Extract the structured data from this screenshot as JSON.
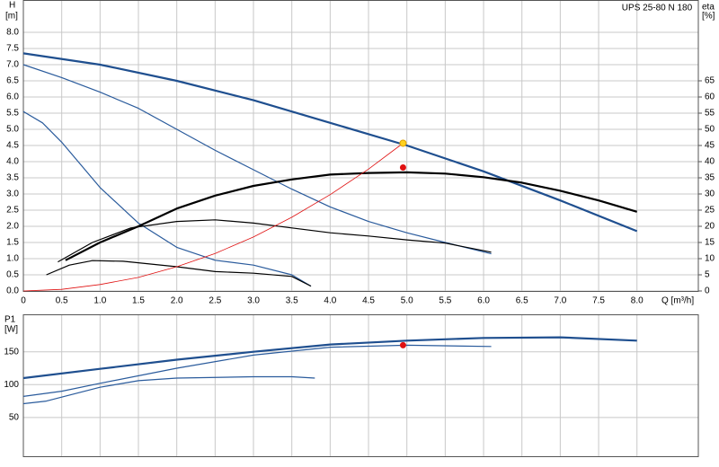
{
  "chart_data": [
    {
      "type": "line",
      "ylabel": "H",
      "yunit": "[m]",
      "y2label": "eta",
      "y2unit": "[%]",
      "xlabel": "Q [m³/h]",
      "legend_label": "UPS 25-80 N 180",
      "xlim": [
        0,
        8.8
      ],
      "ylim": [
        0,
        9
      ],
      "y2lim": [
        0,
        90
      ],
      "grid": true,
      "show_xtick_labels": true,
      "xticks": [
        0,
        0.5,
        {
          "value": 1,
          "label": "1.0"
        },
        1.5,
        {
          "value": 2,
          "label": "2.0"
        },
        2.5,
        {
          "value": 3,
          "label": "3.0"
        },
        3.5,
        {
          "value": 4,
          "label": "4.0"
        },
        4.5,
        {
          "value": 5,
          "label": "5.0"
        },
        5.5,
        {
          "value": 6,
          "label": "6.0"
        },
        6.5,
        {
          "value": 7,
          "label": "7.0"
        },
        7.5,
        {
          "value": 8,
          "label": "8.0"
        }
      ],
      "yticks": [
        {
          "value": 0,
          "label": "0.0"
        },
        0.5,
        {
          "value": 1,
          "label": "1.0"
        },
        1.5,
        {
          "value": 2,
          "label": "2.0"
        },
        2.5,
        {
          "value": 3,
          "label": "3.0"
        },
        3.5,
        {
          "value": 4,
          "label": "4.0"
        },
        4.5,
        {
          "value": 5,
          "label": "5.0"
        },
        5.5,
        {
          "value": 6,
          "label": "6.0"
        },
        6.5,
        {
          "value": 7,
          "label": "7.0"
        },
        7.5,
        {
          "value": 8,
          "label": "8.0"
        }
      ],
      "y2ticks": [
        0,
        5,
        10,
        15,
        20,
        25,
        30,
        35,
        40,
        45,
        50,
        55,
        60,
        65
      ],
      "series": [
        {
          "color": "#1f4f8f",
          "width": 2.2,
          "x": [
            0,
            1,
            2,
            3,
            4,
            5,
            6,
            7,
            8
          ],
          "values": [
            7.35,
            7.0,
            6.5,
            5.9,
            5.2,
            4.5,
            3.7,
            2.8,
            1.85
          ]
        },
        {
          "color": "#2a5b9c",
          "width": 1.2,
          "x": [
            0,
            0.5,
            1,
            1.5,
            2,
            2.5,
            3,
            3.5,
            4,
            4.5,
            5,
            5.5,
            6.1
          ],
          "values": [
            7.0,
            6.6,
            6.15,
            5.65,
            5.0,
            4.35,
            3.75,
            3.15,
            2.6,
            2.15,
            1.8,
            1.5,
            1.15
          ]
        },
        {
          "color": "#2a5b9c",
          "width": 1.2,
          "x": [
            0,
            0.25,
            0.5,
            1,
            1.5,
            2,
            2.5,
            3,
            3.5,
            3.75
          ],
          "values": [
            5.55,
            5.2,
            4.6,
            3.2,
            2.1,
            1.35,
            0.95,
            0.8,
            0.5,
            0.15
          ]
        },
        {
          "axis": "y2",
          "color": "#000000",
          "width": 2.2,
          "x": [
            0.55,
            1,
            1.5,
            2,
            2.5,
            3,
            3.5,
            4,
            4.5,
            5,
            5.5,
            6,
            6.5,
            7,
            7.5,
            8
          ],
          "values": [
            9.5,
            15,
            20,
            25.5,
            29.5,
            32.5,
            34.5,
            36,
            36.5,
            36.7,
            36.3,
            35.2,
            33.5,
            31,
            28,
            24.5
          ]
        },
        {
          "axis": "y2",
          "color": "#000000",
          "width": 1.2,
          "x": [
            0.45,
            0.9,
            1.4,
            2,
            2.5,
            3,
            3.5,
            4,
            4.5,
            5,
            5.5,
            6.1
          ],
          "values": [
            9,
            15,
            19.5,
            21.5,
            22,
            21,
            19.5,
            18,
            17,
            15.8,
            14.8,
            12
          ]
        },
        {
          "axis": "y2",
          "color": "#000000",
          "width": 1.2,
          "x": [
            0.3,
            0.6,
            0.9,
            1.3,
            2,
            2.5,
            3,
            3.5,
            3.75
          ],
          "values": [
            5,
            8,
            9.4,
            9.2,
            7.5,
            6,
            5.5,
            4.5,
            1.5
          ]
        },
        {
          "color": "#e01010",
          "width": 0.8,
          "x": [
            0,
            0.5,
            1,
            1.5,
            2,
            2.5,
            3,
            3.5,
            4,
            4.5,
            4.95
          ],
          "values": [
            0,
            0.05,
            0.2,
            0.42,
            0.75,
            1.16,
            1.67,
            2.28,
            2.98,
            3.77,
            4.57
          ]
        }
      ],
      "points": [
        {
          "x": 4.95,
          "y": 4.57,
          "color": "#ffd21f"
        },
        {
          "x": 4.95,
          "y": 38.2,
          "color": "#e01010",
          "axis": "y2"
        }
      ]
    },
    {
      "type": "line",
      "ylabel": "P1",
      "yunit": "[W]",
      "xlim": [
        0,
        8.8
      ],
      "ylim": [
        -9,
        207
      ],
      "grid": true,
      "show_xtick_labels": false,
      "xticks": [
        0,
        0.5,
        1,
        1.5,
        2,
        2.5,
        3,
        3.5,
        4,
        4.5,
        5,
        5.5,
        6,
        6.5,
        7,
        7.5,
        8
      ],
      "yticks": [
        50,
        100,
        150
      ],
      "series": [
        {
          "color": "#1f4f8f",
          "width": 2.2,
          "x": [
            0,
            1,
            2,
            3,
            4,
            5,
            6,
            7,
            8
          ],
          "values": [
            110,
            124,
            138,
            150,
            161,
            167,
            171,
            172,
            167
          ]
        },
        {
          "color": "#2a5b9c",
          "width": 1.2,
          "x": [
            0,
            0.5,
            1,
            2,
            3,
            4,
            5,
            6.1
          ],
          "values": [
            82,
            90,
            102,
            125,
            145,
            157,
            160,
            158
          ]
        },
        {
          "color": "#2a5b9c",
          "width": 1.2,
          "x": [
            0,
            0.3,
            1,
            1.5,
            2,
            3,
            3.5,
            3.8
          ],
          "values": [
            71,
            75,
            96,
            106,
            110,
            112,
            112,
            110
          ]
        }
      ],
      "points": [
        {
          "x": 4.95,
          "y": 160,
          "color": "#e01010"
        }
      ]
    }
  ]
}
